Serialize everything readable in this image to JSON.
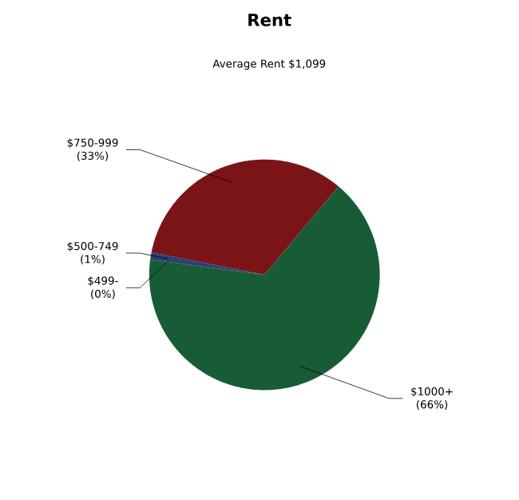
{
  "chart_data": {
    "type": "pie",
    "title": "Rent",
    "subtitle": "Average Rent  $1,099",
    "categories": [
      "$750-999",
      "$500-749",
      "$499-",
      "$1000+"
    ],
    "values": [
      33,
      1,
      0,
      66
    ],
    "value_labels": [
      "(33%)",
      "(1%)",
      "(0%)",
      "(66%)"
    ],
    "colors": [
      "#7b1416",
      "#2b3f78",
      "#8a8a8a",
      "#175c36"
    ]
  }
}
